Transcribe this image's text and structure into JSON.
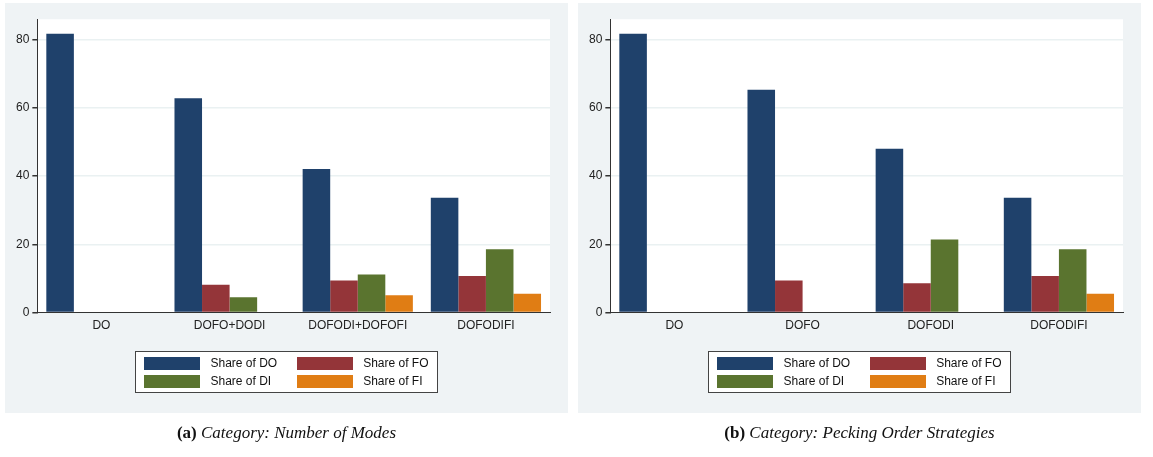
{
  "chart_data": [
    {
      "type": "bar",
      "title": "(a) Category: Number of Modes",
      "categories": [
        "DO",
        "DOFO+DODI",
        "DOFODI+DOFOFI",
        "DOFODIFI"
      ],
      "series": [
        {
          "name": "Share of DO",
          "color": "#1f416b",
          "values": [
            81.7,
            62.8,
            42.1,
            33.7
          ]
        },
        {
          "name": "Share of FO",
          "color": "#943539",
          "values": [
            0,
            8.2,
            9.4,
            10.7
          ]
        },
        {
          "name": "Share of DI",
          "color": "#5a742f",
          "values": [
            0,
            4.5,
            11.2,
            18.6
          ]
        },
        {
          "name": "Share of FI",
          "color": "#e07d14",
          "values": [
            0,
            0,
            5.1,
            5.5
          ]
        }
      ],
      "ylim": [
        0,
        86
      ],
      "yticks": [
        0,
        20,
        40,
        60,
        80
      ],
      "grid": "y",
      "legend": "bottom"
    },
    {
      "type": "bar",
      "title": "(b) Category: Pecking Order Strategies",
      "categories": [
        "DO",
        "DOFO",
        "DOFODI",
        "DOFODIFI"
      ],
      "series": [
        {
          "name": "Share of DO",
          "color": "#1f416b",
          "values": [
            81.7,
            65.3,
            48.0,
            33.7
          ]
        },
        {
          "name": "Share of FO",
          "color": "#943539",
          "values": [
            0,
            9.4,
            8.6,
            10.7
          ]
        },
        {
          "name": "Share of DI",
          "color": "#5a742f",
          "values": [
            0,
            0,
            21.4,
            18.6
          ]
        },
        {
          "name": "Share of FI",
          "color": "#e07d14",
          "values": [
            0,
            0,
            0,
            5.5
          ]
        }
      ],
      "ylim": [
        0,
        86
      ],
      "yticks": [
        0,
        20,
        40,
        60,
        80
      ],
      "grid": "y",
      "legend": "bottom"
    }
  ]
}
